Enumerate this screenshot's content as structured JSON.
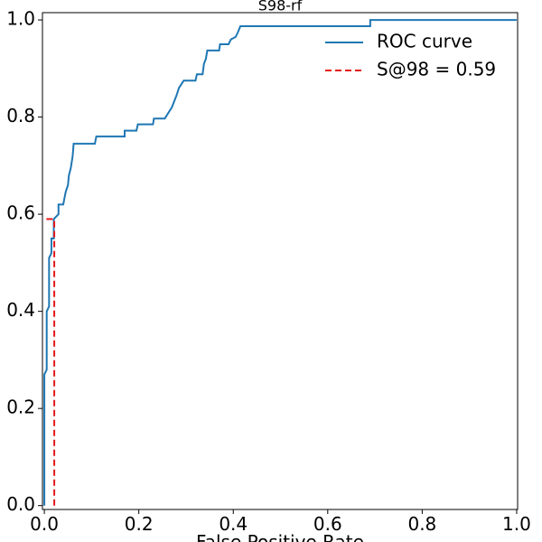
{
  "chart_data": {
    "type": "line",
    "title": "S98-rf",
    "x_label": "False Positive Rate",
    "xlim": [
      -0.004,
      1.002
    ],
    "ylim": [
      -0.008,
      1.015
    ],
    "xticks": [
      {
        "value": 0,
        "label": "0.0"
      },
      {
        "value": 0.2,
        "label": "0.2"
      },
      {
        "value": 0.4,
        "label": "0.4"
      },
      {
        "value": 0.6,
        "label": "0.6"
      },
      {
        "value": 0.8,
        "label": "0.8"
      },
      {
        "value": 1,
        "label": "1.0"
      }
    ],
    "yticks": [
      {
        "value": 0,
        "label": "0.0"
      },
      {
        "value": 0.2,
        "label": "0.2"
      },
      {
        "value": 0.4,
        "label": "0.4"
      },
      {
        "value": 0.6,
        "label": "0.6"
      },
      {
        "value": 0.8,
        "label": "0.8"
      },
      {
        "value": 1,
        "label": "1.0"
      }
    ],
    "legend": "upper right",
    "series": [
      {
        "name": "ROC curve",
        "color": "#1f77b4",
        "dash": false,
        "x": [
          0,
          0,
          0.005,
          0.005,
          0.01,
          0.01,
          0.015,
          0.015,
          0.02,
          0.02,
          0.03,
          0.03,
          0.04,
          0.045,
          0.05,
          0.052,
          0.056,
          0.06,
          0.062,
          0.107,
          0.11,
          0.17,
          0.17,
          0.195,
          0.198,
          0.23,
          0.232,
          0.255,
          0.27,
          0.28,
          0.285,
          0.295,
          0.32,
          0.323,
          0.335,
          0.338,
          0.342,
          0.345,
          0.37,
          0.372,
          0.39,
          0.395,
          0.405,
          0.41,
          0.415,
          0.69,
          0.69,
          1.0
        ],
        "values": [
          0,
          0.27,
          0.28,
          0.4,
          0.41,
          0.51,
          0.52,
          0.55,
          0.55,
          0.59,
          0.6,
          0.62,
          0.62,
          0.645,
          0.66,
          0.68,
          0.695,
          0.72,
          0.745,
          0.745,
          0.76,
          0.76,
          0.772,
          0.772,
          0.785,
          0.785,
          0.797,
          0.797,
          0.82,
          0.845,
          0.86,
          0.875,
          0.875,
          0.888,
          0.888,
          0.91,
          0.92,
          0.937,
          0.937,
          0.95,
          0.95,
          0.96,
          0.965,
          0.975,
          0.987,
          0.987,
          1.0,
          1.0
        ]
      },
      {
        "name": "S@98 = 0.59",
        "color": "#e31a1c",
        "dash": true,
        "x": [
          0.021,
          0.021,
          0
        ],
        "values": [
          0,
          0.59,
          0.59
        ]
      }
    ]
  }
}
